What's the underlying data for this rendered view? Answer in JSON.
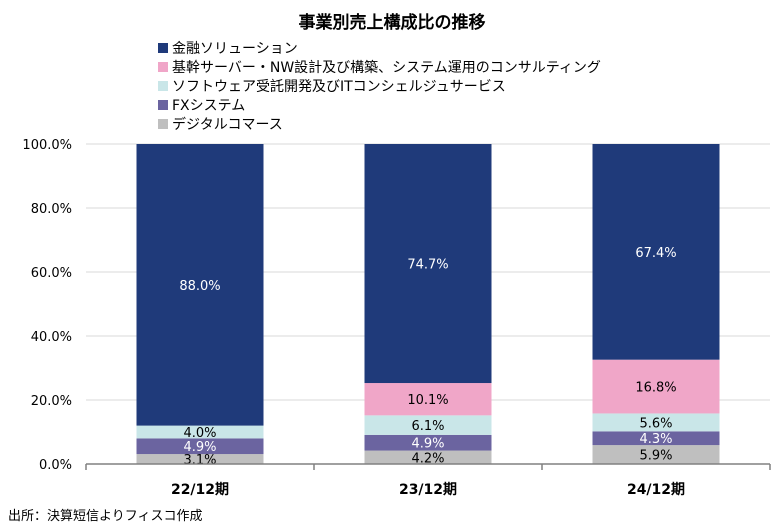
{
  "chart_data": {
    "type": "bar",
    "stacked": true,
    "title": "事業別売上構成比の推移",
    "categories": [
      "22/12期",
      "23/12期",
      "24/12期"
    ],
    "series": [
      {
        "name": "デジタルコマース",
        "values": [
          3.1,
          4.2,
          5.9
        ],
        "labels": [
          "3.1%",
          "4.2%",
          "5.9%"
        ],
        "color": "#bfbfbf",
        "label_color": "#000000"
      },
      {
        "name": "FXシステム",
        "values": [
          4.9,
          4.9,
          4.3
        ],
        "labels": [
          "4.9%",
          "4.9%",
          "4.3%"
        ],
        "color": "#6b64a0",
        "label_color": "#ffffff"
      },
      {
        "name": "ソフトウェア受託開発及びITコンシェルジュサービス",
        "values": [
          4.0,
          6.1,
          5.6
        ],
        "labels": [
          "4.0%",
          "6.1%",
          "5.6%"
        ],
        "color": "#c9e6e8",
        "label_color": "#000000"
      },
      {
        "name": "基幹サーバー・NW設計及び構築、システム運用のコンサルティング",
        "values": [
          0.0,
          10.1,
          16.8
        ],
        "labels": [
          "",
          "10.1%",
          "16.8%"
        ],
        "color": "#f0a6c8",
        "label_color": "#000000"
      },
      {
        "name": "金融ソリューション",
        "values": [
          88.0,
          74.7,
          67.4
        ],
        "labels": [
          "88.0%",
          "74.7%",
          "67.4%"
        ],
        "color": "#1f3a7a",
        "label_color": "#ffffff"
      }
    ],
    "legend_order": [
      4,
      3,
      2,
      1,
      0
    ],
    "ylim": [
      0,
      100
    ],
    "yticks": [
      "0.0%",
      "20.0%",
      "40.0%",
      "60.0%",
      "80.0%",
      "100.0%"
    ],
    "grid": true,
    "legend_position": "top"
  },
  "source": "出所：決算短信よりフィスコ作成"
}
